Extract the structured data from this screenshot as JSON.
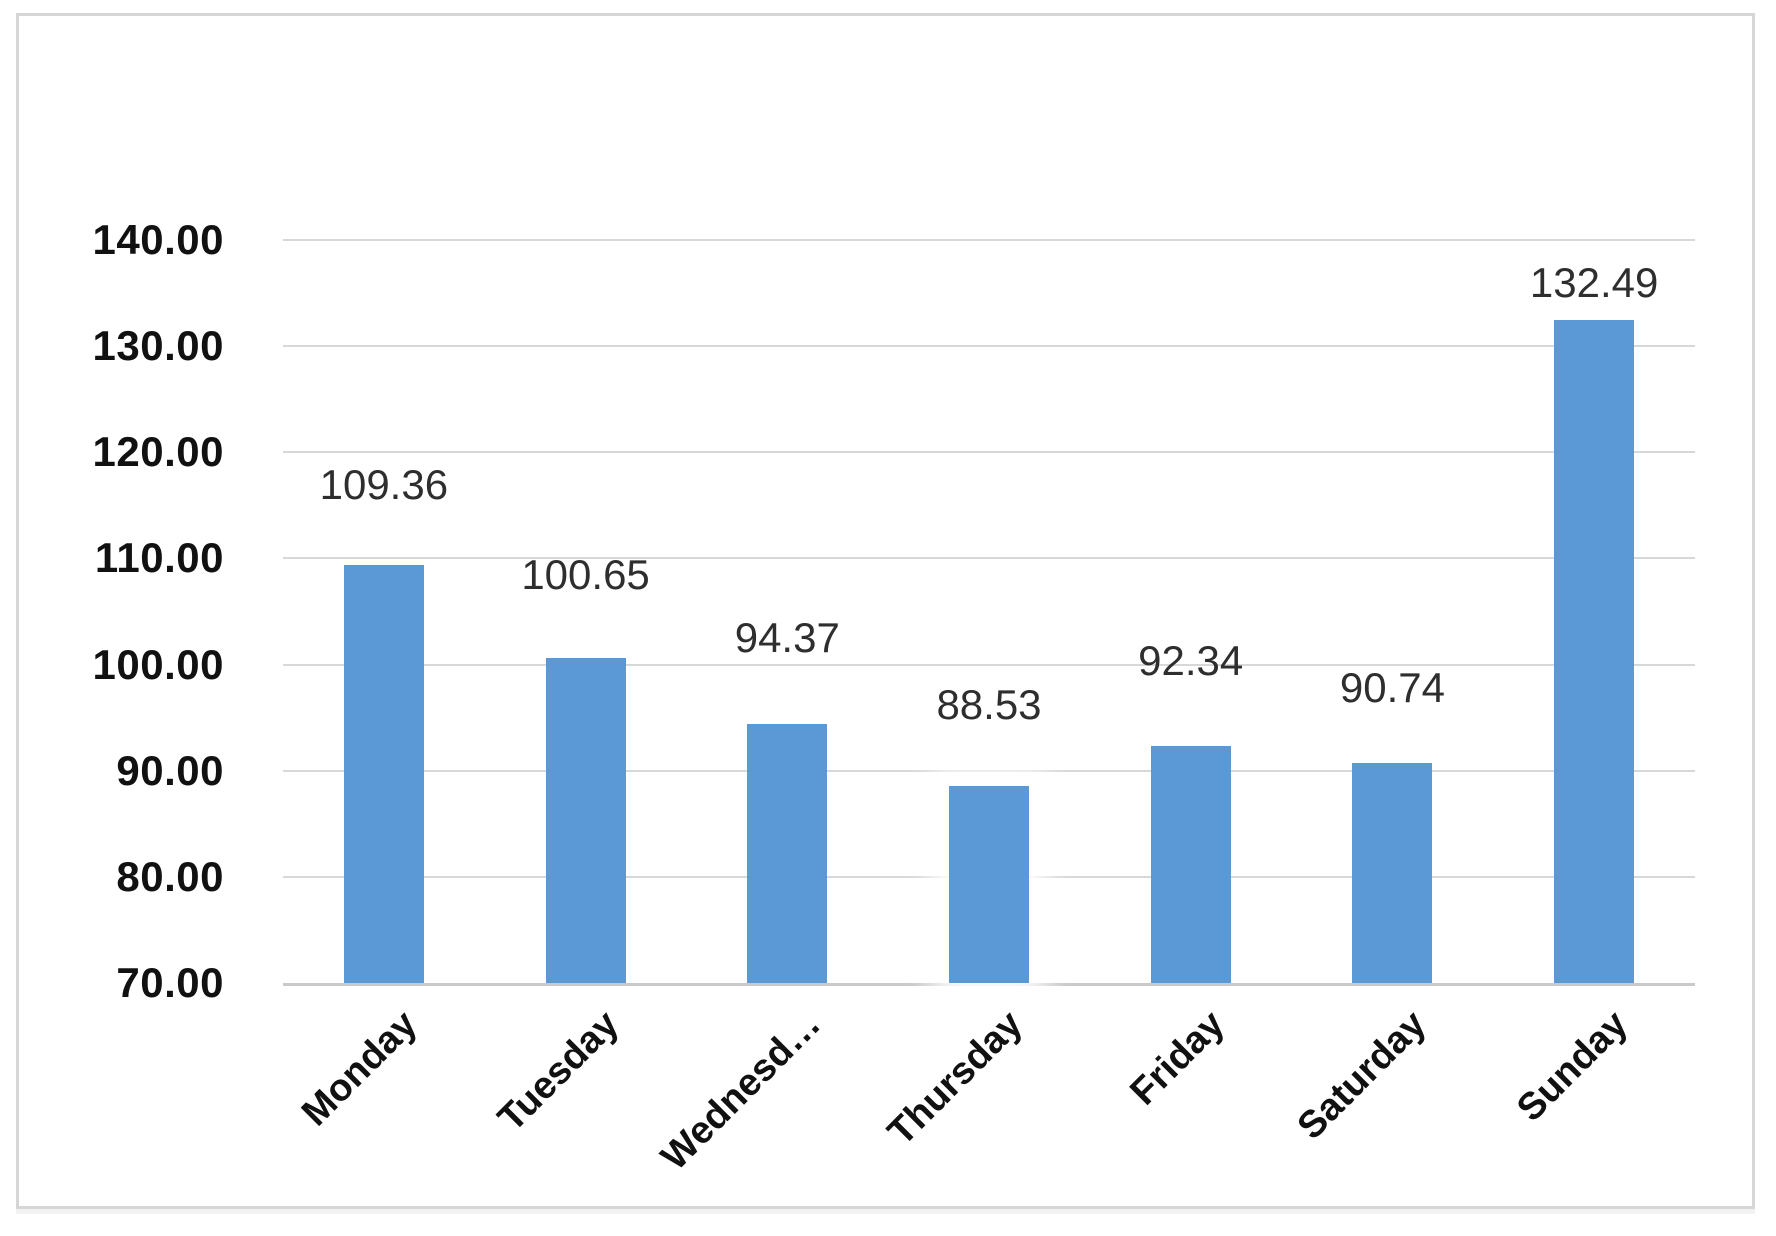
{
  "chart_data": {
    "type": "bar",
    "title": "",
    "xlabel": "",
    "ylabel": "",
    "categories": [
      "Monday",
      "Tuesday",
      "Wednesday",
      "Thursday",
      "Friday",
      "Saturday",
      "Sunday"
    ],
    "category_tick_labels": [
      "Monday",
      "Tuesday",
      "Wednesd…",
      "Thursday",
      "Friday",
      "Saturday",
      "Sunday"
    ],
    "values": [
      109.36,
      100.65,
      94.37,
      88.53,
      92.34,
      90.74,
      132.49
    ],
    "value_labels": [
      "109.36",
      "100.65",
      "94.37",
      "88.53",
      "92.34",
      "90.74",
      "132.49"
    ],
    "ylim": [
      70,
      140
    ],
    "ytick_step": 10,
    "ytick_labels": [
      "140.00",
      "130.00",
      "120.00",
      "110.00",
      "100.00",
      "90.00",
      "80.00",
      "70.00"
    ],
    "grid": true,
    "legend": false,
    "bar_color": "#5a99d5",
    "gridline_color": "#d8d8d8",
    "axis_line_color": "#c9c9c9",
    "frame_border_color": "#d6d6d6",
    "value_label_color": "#2e2e2e",
    "axis_text_color": "#111111",
    "highlight_glow_bar": "Thursday"
  }
}
